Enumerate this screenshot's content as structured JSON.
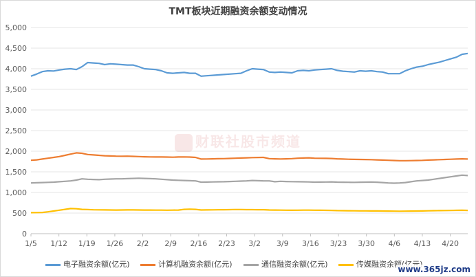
{
  "chart_data": {
    "type": "line",
    "title": "TMT板块近期融资余额变动情况",
    "x_tick_labels": [
      "1/5",
      "1/12",
      "1/19",
      "1/26",
      "2/2",
      "2/9",
      "2/16",
      "2/23",
      "3/2",
      "3/9",
      "3/16",
      "3/23",
      "3/30",
      "4/6",
      "4/13",
      "4/20"
    ],
    "ylim": [
      0,
      5000
    ],
    "y_ticks": [
      "0",
      "500",
      "1,000",
      "1,500",
      "2,000",
      "2,500",
      "3,000",
      "3,500",
      "4,000",
      "4,500",
      "5,000"
    ],
    "grid": true,
    "legend_position": "bottom",
    "series": [
      {
        "name": "电子融资余额(亿元)",
        "color": "#5b9bd5",
        "values": [
          3820,
          3870,
          3930,
          3950,
          3945,
          3970,
          3990,
          4000,
          3980,
          4050,
          4150,
          4140,
          4130,
          4100,
          4120,
          4110,
          4100,
          4090,
          4090,
          4050,
          4000,
          3990,
          3980,
          3950,
          3900,
          3890,
          3900,
          3910,
          3890,
          3890,
          3820,
          3830,
          3840,
          3850,
          3860,
          3870,
          3880,
          3890,
          3950,
          4000,
          3990,
          3980,
          3920,
          3910,
          3920,
          3910,
          3900,
          3950,
          3960,
          3950,
          3970,
          3980,
          3990,
          4000,
          3960,
          3940,
          3930,
          3920,
          3950,
          3940,
          3950,
          3930,
          3920,
          3880,
          3880,
          3880,
          3950,
          4000,
          4040,
          4060,
          4100,
          4130,
          4160,
          4200,
          4240,
          4280,
          4350,
          4370
        ]
      },
      {
        "name": "计算机融资余额(亿元)",
        "color": "#ed7d31",
        "values": [
          1780,
          1790,
          1810,
          1830,
          1850,
          1870,
          1900,
          1930,
          1960,
          1950,
          1920,
          1910,
          1900,
          1890,
          1885,
          1880,
          1878,
          1880,
          1875,
          1870,
          1865,
          1862,
          1860,
          1860,
          1858,
          1855,
          1860,
          1862,
          1858,
          1850,
          1810,
          1812,
          1815,
          1818,
          1820,
          1825,
          1830,
          1835,
          1840,
          1845,
          1848,
          1850,
          1820,
          1815,
          1812,
          1815,
          1820,
          1830,
          1835,
          1840,
          1830,
          1828,
          1826,
          1824,
          1815,
          1810,
          1805,
          1802,
          1800,
          1798,
          1795,
          1790,
          1785,
          1780,
          1775,
          1770,
          1770,
          1772,
          1775,
          1778,
          1785,
          1790,
          1795,
          1800,
          1805,
          1810,
          1815,
          1810
        ]
      },
      {
        "name": "通信融资余额(亿元)",
        "color": "#a5a5a5",
        "values": [
          1230,
          1235,
          1240,
          1245,
          1250,
          1260,
          1270,
          1280,
          1300,
          1330,
          1320,
          1315,
          1310,
          1320,
          1325,
          1330,
          1330,
          1335,
          1340,
          1345,
          1340,
          1335,
          1330,
          1320,
          1310,
          1300,
          1295,
          1290,
          1285,
          1280,
          1250,
          1252,
          1255,
          1258,
          1260,
          1265,
          1270,
          1275,
          1280,
          1290,
          1285,
          1280,
          1280,
          1260,
          1270,
          1265,
          1262,
          1260,
          1258,
          1255,
          1250,
          1252,
          1254,
          1256,
          1250,
          1248,
          1246,
          1245,
          1248,
          1250,
          1252,
          1248,
          1240,
          1230,
          1225,
          1230,
          1240,
          1260,
          1280,
          1290,
          1300,
          1320,
          1340,
          1360,
          1380,
          1400,
          1420,
          1410
        ]
      },
      {
        "name": "传媒融资余额(亿元)",
        "color": "#ffc000",
        "values": [
          510,
          512,
          515,
          530,
          550,
          570,
          590,
          610,
          605,
          590,
          585,
          580,
          578,
          576,
          575,
          574,
          575,
          576,
          577,
          575,
          574,
          573,
          572,
          571,
          570,
          572,
          574,
          590,
          595,
          590,
          575,
          576,
          578,
          580,
          582,
          584,
          586,
          585,
          584,
          583,
          582,
          581,
          575,
          573,
          572,
          570,
          568,
          570,
          572,
          571,
          570,
          568,
          566,
          565,
          560,
          558,
          556,
          555,
          554,
          553,
          552,
          551,
          550,
          548,
          546,
          545,
          546,
          548,
          550,
          552,
          555,
          558,
          560,
          562,
          564,
          566,
          568,
          565
        ]
      }
    ]
  },
  "watermark": "财联社股市频道",
  "site_mark": "www.365jz.com"
}
